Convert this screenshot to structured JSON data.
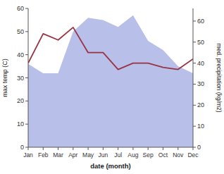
{
  "chart_data": {
    "type": "area",
    "categories": [
      "Jan",
      "Feb",
      "Mar",
      "Apr",
      "May",
      "Jun",
      "Jul",
      "Aug",
      "Sep",
      "Oct",
      "Nov",
      "Dec"
    ],
    "series": [
      {
        "type": "area",
        "color": "#b8bfe8",
        "values": [
          36,
          32,
          32,
          50,
          56,
          55,
          52,
          57,
          46,
          42,
          35,
          32
        ]
      },
      {
        "type": "line",
        "color": "#993344",
        "axis": "y2",
        "values": [
          40,
          54,
          51,
          57,
          45,
          45,
          37,
          40,
          40,
          38,
          37,
          42
        ]
      }
    ],
    "xlabel": "date (month)",
    "ylabel": "max temp (C)",
    "y2label": "med. precipitation (kg/m2)",
    "ylim": [
      0,
      60
    ],
    "yticks": [
      0,
      10,
      20,
      30,
      40,
      50,
      60
    ],
    "y2lim": [
      0,
      66
    ],
    "y2ticks": [
      0,
      10,
      20,
      30,
      40,
      50,
      60
    ],
    "grid": false
  }
}
